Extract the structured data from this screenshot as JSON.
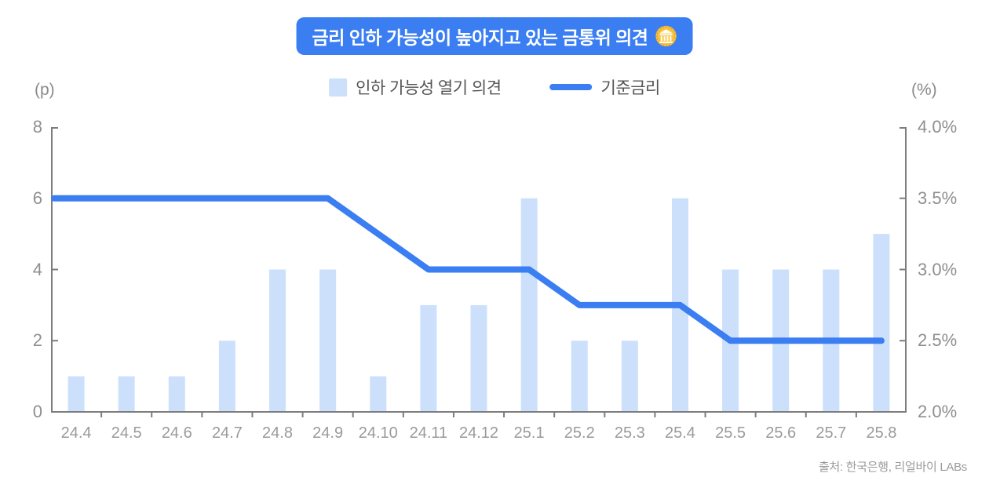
{
  "title": {
    "text": "금리 인하 가능성이 높아지고 있는 금통위 의견",
    "icon": "bank-coin-icon",
    "bg_color": "#3b7ef2",
    "text_color": "#ffffff"
  },
  "legend": [
    {
      "label": "인하 가능성 열기 의견",
      "type": "bar",
      "color": "#cce0fc"
    },
    {
      "label": "기준금리",
      "type": "line",
      "color": "#3b7ef2"
    }
  ],
  "axes": {
    "left_unit": "(p)",
    "right_unit": "(%)",
    "left_ticks": [
      8,
      6,
      4,
      2,
      0
    ],
    "right_ticks": [
      "4.0%",
      "3.5%",
      "3.0%",
      "2.5%",
      "2.0%"
    ],
    "axis_color": "#7d7d7d"
  },
  "source": "출처: 한국은행, 리얼바이 LABs",
  "chart_data": {
    "type": "bar",
    "categories": [
      "24.4",
      "24.5",
      "24.6",
      "24.7",
      "24.8",
      "24.9",
      "24.10",
      "24.11",
      "24.12",
      "25.1",
      "25.2",
      "25.3",
      "25.4",
      "25.5",
      "25.6",
      "25.7",
      "25.8"
    ],
    "series": [
      {
        "name": "인하 가능성 열기 의견",
        "type": "bar",
        "axis": "left",
        "color": "#cce0fc",
        "values": [
          1,
          1,
          1,
          2,
          4,
          4,
          1,
          3,
          3,
          6,
          2,
          2,
          6,
          4,
          4,
          4,
          5
        ]
      },
      {
        "name": "기준금리",
        "type": "line",
        "axis": "right",
        "color": "#3b7ef2",
        "values": [
          3.5,
          3.5,
          3.5,
          3.5,
          3.5,
          3.5,
          3.25,
          3.0,
          3.0,
          3.0,
          2.75,
          2.75,
          2.75,
          2.5,
          2.5,
          2.5,
          2.5
        ]
      }
    ],
    "title": "금리 인하 가능성이 높아지고 있는 금통위 의견",
    "xlabel": "",
    "ylabel_left": "(p)",
    "ylabel_right": "(%)",
    "left_ylim": [
      0,
      8
    ],
    "right_ylim": [
      2.0,
      4.0
    ],
    "grid": false,
    "legend_position": "top"
  }
}
